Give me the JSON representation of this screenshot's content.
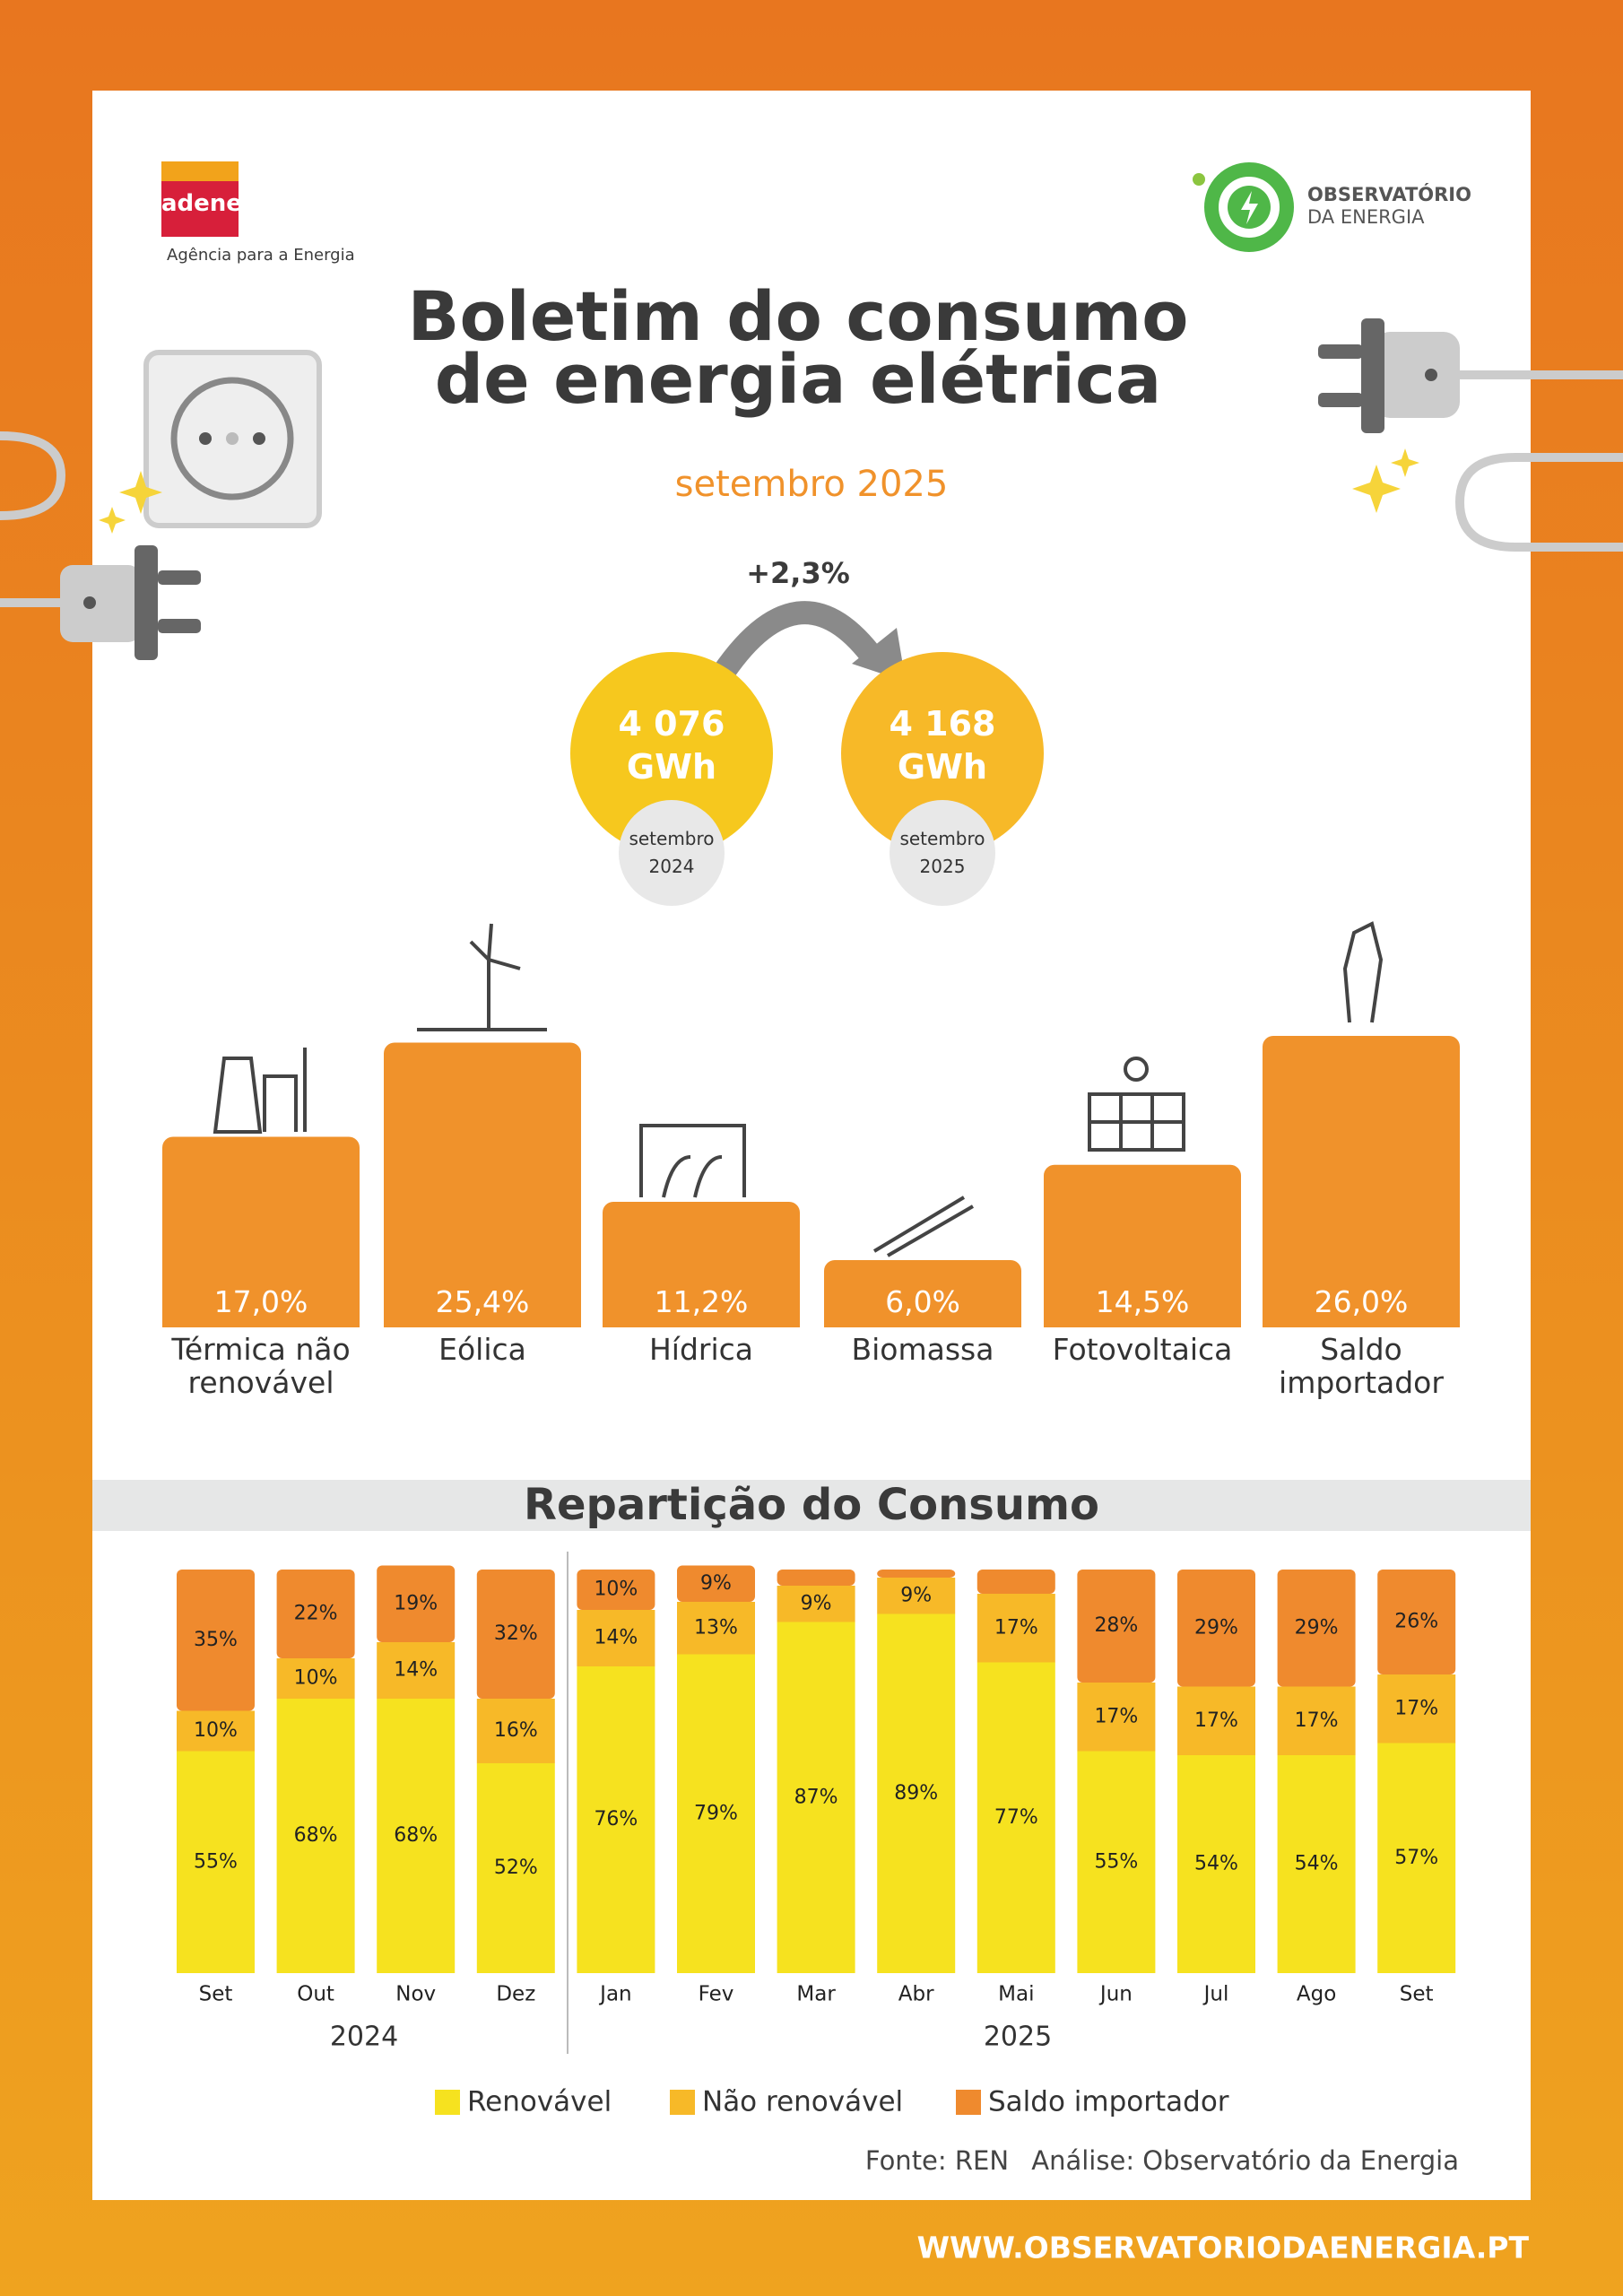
{
  "header": {
    "brand": "adene",
    "brand_tagline": "Agência para a Energia",
    "logo_name": "OBSERVATÓRIO",
    "logo_sub": "DA ENERGIA",
    "title": "Boletim do consumo de energia elétrica",
    "period": "setembro 2025"
  },
  "comparison": {
    "change": "+2,3%",
    "items": [
      {
        "value": "4 076",
        "unit": "GWh",
        "period": "setembro 2024"
      },
      {
        "value": "4 168",
        "unit": "GWh",
        "period": "setembro 2025"
      }
    ]
  },
  "chart_data": [
    {
      "type": "bar",
      "categories": [
        "Térmica não renovável",
        "Eólica",
        "Hídrica",
        "Biomassa",
        "Fotovoltaica",
        "Saldo importador"
      ],
      "values": [
        17.0,
        25.4,
        11.2,
        6.0,
        14.5,
        26.0
      ],
      "value_labels": [
        "17,0%",
        "25,4%",
        "11,2%",
        "6,0%",
        "14,5%",
        "26,0%"
      ],
      "color": "#f0922b"
    },
    {
      "type": "stacked-bar",
      "title": "Repartição do Consumo",
      "categories": [
        "Set",
        "Out",
        "Nov",
        "Dez",
        "Jan",
        "Fev",
        "Mar",
        "Abr",
        "Mai",
        "Jun",
        "Jul",
        "Ago",
        "Set"
      ],
      "year_labels": [
        "2024",
        "2025"
      ],
      "ylim": [
        0,
        100
      ],
      "series": [
        {
          "name": "Renovável",
          "color": "#f6e21f",
          "values": [
            55,
            68,
            68,
            52,
            76,
            79,
            87,
            89,
            77,
            55,
            54,
            54,
            57
          ],
          "value_labels": [
            "55%",
            "68%",
            "68%",
            "52%",
            "76%",
            "79%",
            "87%",
            "89%",
            "77%",
            "55%",
            "54%",
            "54%",
            "57%"
          ]
        },
        {
          "name": "Não renovável",
          "color": "#f7b928",
          "values": [
            10,
            10,
            14,
            16,
            14,
            13,
            9,
            9,
            17,
            17,
            17,
            17,
            17
          ],
          "value_labels": [
            "10%",
            "10%",
            "14%",
            "16%",
            "14%",
            "13%",
            "9%",
            "9%",
            "17%",
            "17%",
            "17%",
            "17%",
            "17%"
          ]
        },
        {
          "name": "Saldo importador",
          "color": "#ef8a2e",
          "values": [
            35,
            22,
            19,
            32,
            10,
            9,
            4,
            2,
            6,
            28,
            29,
            29,
            26
          ],
          "value_labels": [
            "35%",
            "22%",
            "19%",
            "32%",
            "10%",
            "9%",
            null,
            null,
            null,
            "28%",
            "29%",
            "29%",
            "26%"
          ]
        }
      ],
      "source": "Fonte: REN",
      "analysis": "Análise: Observatório da Energia"
    }
  ],
  "footer": {
    "url": "WWW.OBSERVATORIODAENERGIA.PT"
  }
}
